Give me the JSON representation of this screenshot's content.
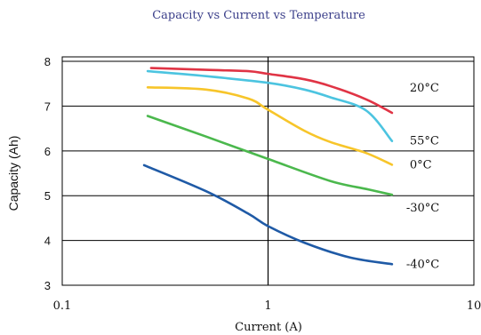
{
  "chart_data": {
    "type": "line",
    "title": "Capacity vs Current vs Temperature",
    "xlabel": "Current (A)",
    "ylabel": "Capacity (Ah)",
    "xscale": "log",
    "xlim": [
      0.1,
      10
    ],
    "ylim": [
      3,
      8.1
    ],
    "xticks": [
      "0.1",
      "1",
      "10"
    ],
    "yticks": [
      "3",
      "4",
      "5",
      "6",
      "7",
      "8"
    ],
    "grid": true,
    "series": [
      {
        "name": "20°C",
        "color": "#e03445",
        "points": [
          [
            0.27,
            7.85
          ],
          [
            0.5,
            7.81
          ],
          [
            0.8,
            7.78
          ],
          [
            1.0,
            7.72
          ],
          [
            1.5,
            7.6
          ],
          [
            2.0,
            7.45
          ],
          [
            3.0,
            7.15
          ],
          [
            4.0,
            6.85
          ]
        ]
      },
      {
        "name": "55°C",
        "color": "#4cc4e0",
        "points": [
          [
            0.26,
            7.78
          ],
          [
            0.5,
            7.67
          ],
          [
            1.0,
            7.52
          ],
          [
            1.5,
            7.37
          ],
          [
            2.0,
            7.2
          ],
          [
            3.0,
            6.9
          ],
          [
            4.0,
            6.22
          ]
        ]
      },
      {
        "name": "0°C",
        "color": "#f7c52a",
        "points": [
          [
            0.26,
            7.42
          ],
          [
            0.5,
            7.37
          ],
          [
            0.8,
            7.17
          ],
          [
            1.0,
            6.92
          ],
          [
            1.5,
            6.45
          ],
          [
            2.0,
            6.2
          ],
          [
            3.0,
            5.95
          ],
          [
            4.0,
            5.69
          ]
        ]
      },
      {
        "name": "-30°C",
        "color": "#4bb84d",
        "points": [
          [
            0.26,
            6.78
          ],
          [
            0.5,
            6.32
          ],
          [
            1.0,
            5.82
          ],
          [
            2.0,
            5.33
          ],
          [
            3.0,
            5.15
          ],
          [
            4.0,
            5.02
          ]
        ]
      },
      {
        "name": "-40°C",
        "color": "#1f5aa6",
        "points": [
          [
            0.25,
            5.68
          ],
          [
            0.5,
            5.1
          ],
          [
            0.8,
            4.6
          ],
          [
            1.0,
            4.32
          ],
          [
            1.5,
            3.95
          ],
          [
            2.5,
            3.62
          ],
          [
            4.0,
            3.47
          ]
        ]
      }
    ]
  }
}
